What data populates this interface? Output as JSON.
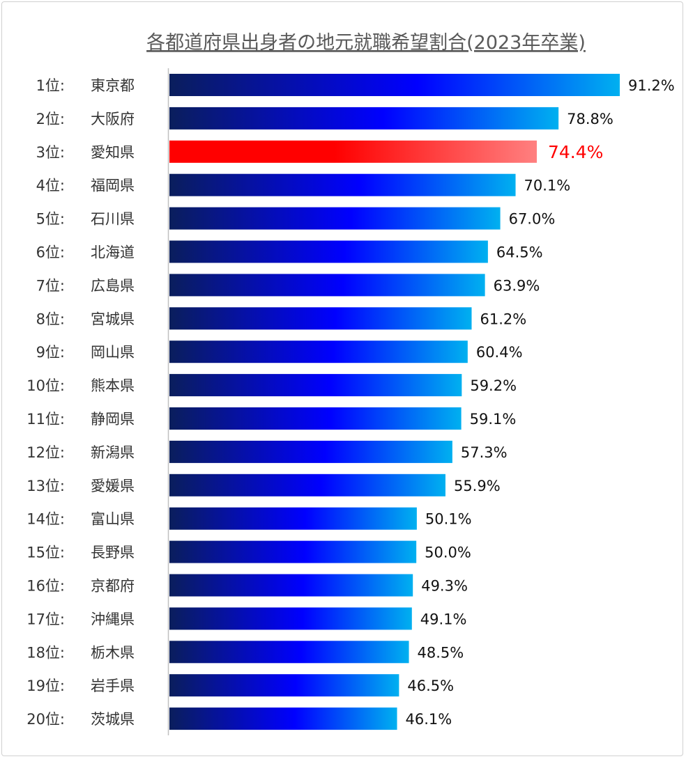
{
  "chart_data": {
    "type": "bar",
    "orientation": "horizontal",
    "title": "各都道府県出身者の地元就職希望割合(2023年卒業)",
    "xlabel": "",
    "ylabel": "",
    "xlim": [
      0,
      100
    ],
    "grid": false,
    "unit": "%",
    "highlight_index": 2,
    "colors": {
      "bar_start": "#0a1e5c",
      "bar_mid": "#0000ff",
      "bar_end": "#00b0f0",
      "highlight_start": "#ff0000",
      "highlight_end": "#ff8080",
      "highlight_text": "#ff0000"
    },
    "ranks": [
      "1位:",
      "2位:",
      "3位:",
      "4位:",
      "5位:",
      "6位:",
      "7位:",
      "8位:",
      "9位:",
      "10位:",
      "11位:",
      "12位:",
      "13位:",
      "14位:",
      "15位:",
      "16位:",
      "17位:",
      "18位:",
      "19位:",
      "20位:"
    ],
    "categories": [
      "東京都",
      "大阪府",
      "愛知県",
      "福岡県",
      "石川県",
      "北海道",
      "広島県",
      "宮城県",
      "岡山県",
      "熊本県",
      "静岡県",
      "新潟県",
      "愛媛県",
      "富山県",
      "長野県",
      "京都府",
      "沖縄県",
      "栃木県",
      "岩手県",
      "茨城県"
    ],
    "values": [
      91.2,
      78.8,
      74.4,
      70.1,
      67.0,
      64.5,
      63.9,
      61.2,
      60.4,
      59.2,
      59.1,
      57.3,
      55.9,
      50.1,
      50.0,
      49.3,
      49.1,
      48.5,
      46.5,
      46.1
    ]
  }
}
